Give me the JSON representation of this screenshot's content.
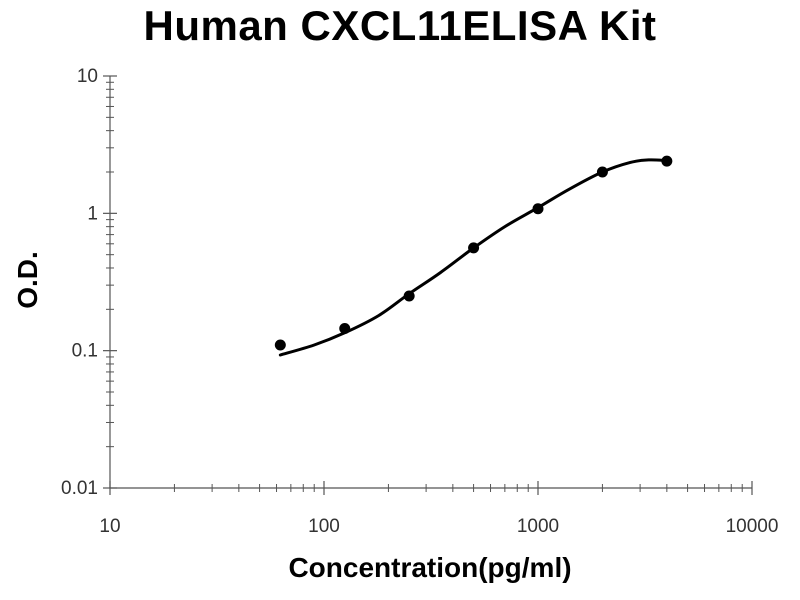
{
  "chart_data": {
    "type": "scatter",
    "title": "Human CXCL11ELISA Kit",
    "xlabel": "Concentration(pg/ml)",
    "ylabel": "O.D.",
    "x_scale": "log",
    "y_scale": "log",
    "xlim": [
      10,
      10000
    ],
    "ylim": [
      0.01,
      10
    ],
    "x_ticks": [
      "10",
      "100",
      "1000",
      "10000"
    ],
    "y_ticks": [
      "0.01",
      "0.1",
      "1",
      "10"
    ],
    "grid": false,
    "series": [
      {
        "points": [
          {
            "x": 62.5,
            "y": 0.11
          },
          {
            "x": 125,
            "y": 0.145
          },
          {
            "x": 250,
            "y": 0.25
          },
          {
            "x": 500,
            "y": 0.56
          },
          {
            "x": 1000,
            "y": 1.08
          },
          {
            "x": 2000,
            "y": 2.0
          },
          {
            "x": 4000,
            "y": 2.4
          }
        ],
        "fit_curve": [
          {
            "x": 62.5,
            "y": 0.093
          },
          {
            "x": 90,
            "y": 0.11
          },
          {
            "x": 125,
            "y": 0.135
          },
          {
            "x": 180,
            "y": 0.18
          },
          {
            "x": 250,
            "y": 0.26
          },
          {
            "x": 350,
            "y": 0.37
          },
          {
            "x": 500,
            "y": 0.56
          },
          {
            "x": 700,
            "y": 0.8
          },
          {
            "x": 1000,
            "y": 1.1
          },
          {
            "x": 1400,
            "y": 1.5
          },
          {
            "x": 2000,
            "y": 2.0
          },
          {
            "x": 2700,
            "y": 2.35
          },
          {
            "x": 3300,
            "y": 2.45
          },
          {
            "x": 4000,
            "y": 2.42
          }
        ]
      }
    ]
  }
}
